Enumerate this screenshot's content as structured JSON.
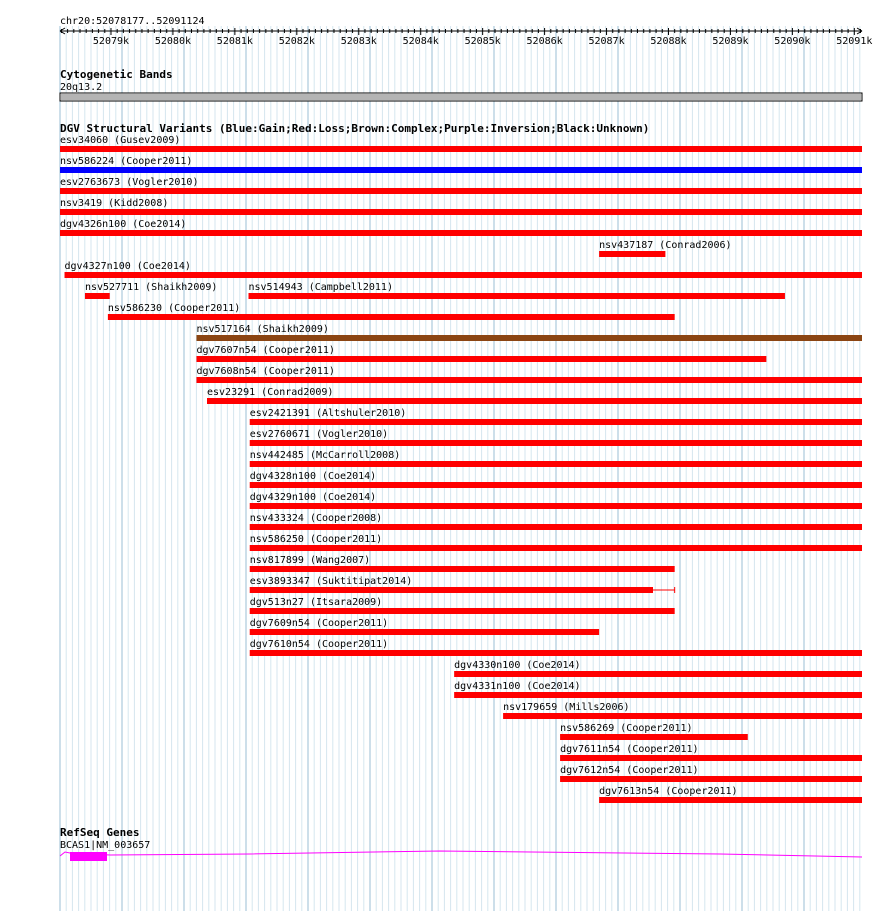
{
  "ruler": {
    "location": "chr20:52078177..52091124",
    "start": 52078177,
    "end": 52091124,
    "ticks": [
      "52079k",
      "52080k",
      "52081k",
      "52082k",
      "52083k",
      "52084k",
      "52085k",
      "52086k",
      "52087k",
      "52088k",
      "52089k",
      "52090k",
      "52091k"
    ]
  },
  "cytobands": {
    "title": "Cytogenetic Bands",
    "band": "20q13.2"
  },
  "dgv": {
    "title": "DGV Structural Variants (Blue:Gain;Red:Loss;Brown:Complex;Purple:Inversion;Black:Unknown)",
    "colors": {
      "loss": "#ff0000",
      "gain": "#0000ff",
      "complex": "#8b4513"
    },
    "features": [
      {
        "label": "esv34060 (Gusev2009)",
        "start": 52078177,
        "end": 52091124,
        "type": "loss"
      },
      {
        "label": "nsv586224 (Cooper2011)",
        "start": 52078177,
        "end": 52091124,
        "type": "gain"
      },
      {
        "label": "esv2763673 (Vogler2010)",
        "start": 52078177,
        "end": 52091124,
        "type": "loss"
      },
      {
        "label": "nsv3419 (Kidd2008)",
        "start": 52078177,
        "end": 52091124,
        "type": "loss"
      },
      {
        "label": "dgv4326n100 (Coe2014)",
        "start": 52078177,
        "end": 52091124,
        "type": "loss"
      },
      {
        "label": "nsv437187 (Conrad2006)",
        "start": 52086880,
        "end": 52087950,
        "type": "loss"
      },
      {
        "label": "dgv4327n100 (Coe2014)",
        "start": 52078250,
        "end": 52091124,
        "type": "loss"
      },
      {
        "label": "nsv527711 (Shaikh2009)",
        "start": 52078580,
        "end": 52078980,
        "type": "loss"
      },
      {
        "label": "nsv514943 (Campbell2011)",
        "start": 52081220,
        "end": 52089880,
        "type": "loss"
      },
      {
        "label": "nsv586230 (Cooper2011)",
        "start": 52078950,
        "end": 52088100,
        "type": "loss"
      },
      {
        "label": "nsv517164 (Shaikh2009)",
        "start": 52080380,
        "end": 52091124,
        "type": "complex"
      },
      {
        "label": "dgv7607n54 (Cooper2011)",
        "start": 52080380,
        "end": 52089580,
        "type": "loss"
      },
      {
        "label": "dgv7608n54 (Cooper2011)",
        "start": 52080380,
        "end": 52091124,
        "type": "loss"
      },
      {
        "label": "esv23291 (Conrad2009)",
        "start": 52080550,
        "end": 52091124,
        "type": "loss"
      },
      {
        "label": "esv2421391 (Altshuler2010)",
        "start": 52081240,
        "end": 52091124,
        "type": "loss"
      },
      {
        "label": "esv2760671 (Vogler2010)",
        "start": 52081240,
        "end": 52091124,
        "type": "loss"
      },
      {
        "label": "nsv442485 (McCarroll2008)",
        "start": 52081240,
        "end": 52091124,
        "type": "loss"
      },
      {
        "label": "dgv4328n100 (Coe2014)",
        "start": 52081240,
        "end": 52091124,
        "type": "loss"
      },
      {
        "label": "dgv4329n100 (Coe2014)",
        "start": 52081240,
        "end": 52091124,
        "type": "loss"
      },
      {
        "label": "nsv433324 (Cooper2008)",
        "start": 52081240,
        "end": 52091124,
        "type": "loss"
      },
      {
        "label": "nsv586250 (Cooper2011)",
        "start": 52081240,
        "end": 52091124,
        "type": "loss"
      },
      {
        "label": "nsv817899 (Wang2007)",
        "start": 52081240,
        "end": 52088100,
        "type": "loss"
      },
      {
        "label": "esv3893347 (Suktitipat2014)",
        "start": 52081240,
        "end": 52087750,
        "type": "loss",
        "extend_to": 52088100
      },
      {
        "label": "dgv513n27 (Itsara2009)",
        "start": 52081240,
        "end": 52088100,
        "type": "loss"
      },
      {
        "label": "dgv7609n54 (Cooper2011)",
        "start": 52081240,
        "end": 52086880,
        "type": "loss"
      },
      {
        "label": "dgv7610n54 (Cooper2011)",
        "start": 52081240,
        "end": 52091124,
        "type": "loss"
      },
      {
        "label": "dgv4330n100 (Coe2014)",
        "start": 52084540,
        "end": 52091124,
        "type": "loss"
      },
      {
        "label": "dgv4331n100 (Coe2014)",
        "start": 52084540,
        "end": 52091124,
        "type": "loss"
      },
      {
        "label": "nsv179659 (Mills2006)",
        "start": 52085330,
        "end": 52091124,
        "type": "loss"
      },
      {
        "label": "nsv586269 (Cooper2011)",
        "start": 52086250,
        "end": 52089280,
        "type": "loss"
      },
      {
        "label": "dgv7611n54 (Cooper2011)",
        "start": 52086250,
        "end": 52091124,
        "type": "loss"
      },
      {
        "label": "dgv7612n54 (Cooper2011)",
        "start": 52086250,
        "end": 52091124,
        "type": "loss"
      },
      {
        "label": "dgv7613n54 (Cooper2011)",
        "start": 52086880,
        "end": 52091124,
        "type": "loss"
      }
    ]
  },
  "refseq": {
    "title": "RefSeq Genes",
    "gene_label": "BCAS1|NM_003657",
    "color": "#ff00ff"
  }
}
